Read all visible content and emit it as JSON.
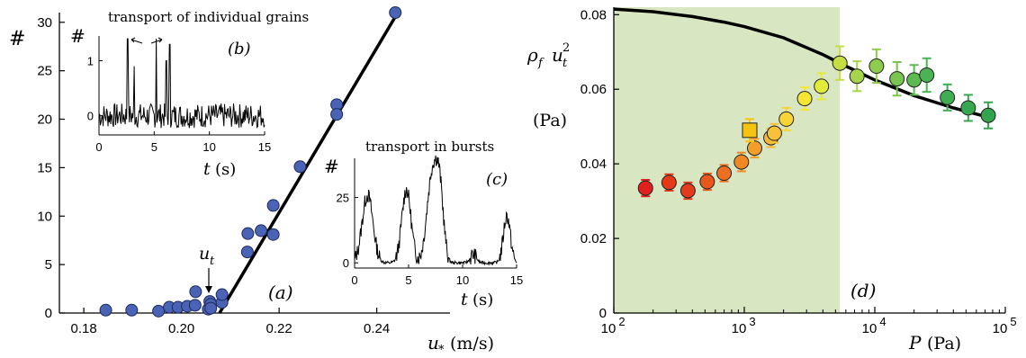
{
  "chart_data": [
    {
      "type": "scatter",
      "panel": "(a)",
      "xlabel_var": "u",
      "xlabel_sub": "*",
      "xlabel_unit": "(m/s)",
      "ylabel": "#",
      "xlim": [
        0.175,
        0.255
      ],
      "ylim": [
        0,
        31
      ],
      "xticks": [
        {
          "v": 0.18,
          "label": "0.18"
        },
        {
          "v": 0.2,
          "label": "0.20"
        },
        {
          "v": 0.22,
          "label": "0.22"
        },
        {
          "v": 0.24,
          "label": "0.24"
        }
      ],
      "yticks": [
        {
          "v": 0,
          "label": "0"
        },
        {
          "v": 5,
          "label": "5"
        },
        {
          "v": 10,
          "label": "10"
        },
        {
          "v": 15,
          "label": "15"
        },
        {
          "v": 20,
          "label": "20"
        },
        {
          "v": 25,
          "label": "25"
        },
        {
          "v": 30,
          "label": "30"
        }
      ],
      "marker_color": "#4a63b5",
      "points": [
        [
          0.1845,
          0.3
        ],
        [
          0.1898,
          0.3
        ],
        [
          0.1953,
          0.2
        ],
        [
          0.1975,
          0.6
        ],
        [
          0.1993,
          0.6
        ],
        [
          0.2012,
          0.7
        ],
        [
          0.2028,
          0.8
        ],
        [
          0.2029,
          2.2
        ],
        [
          0.2055,
          0.4
        ],
        [
          0.2058,
          1.2
        ],
        [
          0.206,
          0.9
        ],
        [
          0.206,
          0.5
        ],
        [
          0.2083,
          1.1
        ],
        [
          0.2083,
          1.9
        ],
        [
          0.2135,
          6.3
        ],
        [
          0.2136,
          8.2
        ],
        [
          0.2163,
          8.5
        ],
        [
          0.2188,
          8.1
        ],
        [
          0.2188,
          11.1
        ],
        [
          0.2243,
          15.1
        ],
        [
          0.2318,
          21.5
        ],
        [
          0.2318,
          20.5
        ],
        [
          0.2438,
          31.0
        ]
      ],
      "fit_line": [
        [
          0.2078,
          0
        ],
        [
          0.2443,
          31
        ]
      ],
      "annotation_text": "u",
      "annotation_sub": "t",
      "annotation_x": 0.2062,
      "inset_b": {
        "panel": "(b)",
        "title": "transport of individual grains",
        "ylabel": "#",
        "xlabel_var": "t",
        "xlabel_unit": "(s)",
        "xlim": [
          0,
          15
        ],
        "ylim": [
          -0.35,
          1.45
        ],
        "xticks": [
          {
            "v": 0,
            "label": "0"
          },
          {
            "v": 5,
            "label": "5"
          },
          {
            "v": 10,
            "label": "10"
          },
          {
            "v": 15,
            "label": "15"
          }
        ],
        "yticks": [
          {
            "v": 0,
            "label": "0"
          },
          {
            "v": 1,
            "label": "1"
          }
        ],
        "spikes": [
          [
            2.6,
            1.4
          ],
          [
            3.2,
            0.9
          ],
          [
            5.2,
            1.4
          ],
          [
            6.1,
            1.0
          ],
          [
            6.4,
            1.3
          ]
        ]
      },
      "inset_c": {
        "panel": "(c)",
        "title": "transport in bursts",
        "ylabel": "#",
        "xlabel_var": "t",
        "xlabel_unit": "(s)",
        "xlim": [
          0,
          15
        ],
        "ylim": [
          -2,
          40
        ],
        "xticks": [
          {
            "v": 0,
            "label": "0"
          },
          {
            "v": 5,
            "label": "5"
          },
          {
            "v": 10,
            "label": "10"
          },
          {
            "v": 15,
            "label": "15"
          }
        ],
        "yticks": [
          {
            "v": 0,
            "label": "0"
          },
          {
            "v": 25,
            "label": "25"
          }
        ],
        "bursts": [
          [
            1.2,
            26,
            0.7
          ],
          [
            4.8,
            28,
            0.6
          ],
          [
            7.2,
            34,
            0.7
          ],
          [
            7.9,
            22,
            0.5
          ],
          [
            11.0,
            3,
            0.4
          ],
          [
            14.1,
            18,
            0.45
          ]
        ]
      }
    },
    {
      "type": "scatter",
      "panel": "(d)",
      "xscale": "log",
      "xlabel_var": "P",
      "xlabel_unit": "(Pa)",
      "ylabel_top": "ρ_f u_t^2",
      "ylabel_unit": "(Pa)",
      "xlim": [
        100,
        100000
      ],
      "ylim": [
        0,
        0.082
      ],
      "xticks": [
        {
          "v": 100,
          "label": "10",
          "exp": "2"
        },
        {
          "v": 1000,
          "label": "10",
          "exp": "3"
        },
        {
          "v": 10000,
          "label": "10",
          "exp": "4"
        },
        {
          "v": 100000,
          "label": "10",
          "exp": "5"
        }
      ],
      "yticks": [
        {
          "v": 0,
          "label": "0"
        },
        {
          "v": 0.02,
          "label": "0.02"
        },
        {
          "v": 0.04,
          "label": "0.04"
        },
        {
          "v": 0.06,
          "label": "0.06"
        },
        {
          "v": 0.08,
          "label": "0.08"
        }
      ],
      "shade_range": [
        100,
        5400
      ],
      "shade_color": "#d8e6c2",
      "curve": [
        [
          100,
          0.0815
        ],
        [
          200,
          0.0808
        ],
        [
          400,
          0.0795
        ],
        [
          700,
          0.078
        ],
        [
          1000,
          0.0768
        ],
        [
          2000,
          0.0738
        ],
        [
          4000,
          0.0693
        ],
        [
          6000,
          0.0662
        ],
        [
          10000,
          0.0625
        ],
        [
          20000,
          0.0583
        ],
        [
          40000,
          0.055
        ],
        [
          80000,
          0.0522
        ]
      ],
      "points": [
        {
          "x": 175,
          "y": 0.0335,
          "err": 0.0022,
          "color": "#e02020"
        },
        {
          "x": 265,
          "y": 0.035,
          "err": 0.0022,
          "color": "#e43a1a"
        },
        {
          "x": 370,
          "y": 0.0328,
          "err": 0.0022,
          "color": "#e23c1c"
        },
        {
          "x": 520,
          "y": 0.0352,
          "err": 0.0022,
          "color": "#e8581c"
        },
        {
          "x": 700,
          "y": 0.0375,
          "err": 0.0022,
          "color": "#ec7020"
        },
        {
          "x": 950,
          "y": 0.0405,
          "err": 0.0025,
          "color": "#ef8a22"
        },
        {
          "x": 1200,
          "y": 0.0442,
          "err": 0.0025,
          "color": "#f29e28"
        },
        {
          "x": 1600,
          "y": 0.047,
          "err": 0.0025,
          "color": "#f6b832"
        },
        {
          "x": 1700,
          "y": 0.0482,
          "err": 0.0025,
          "color": "#f7c23a"
        },
        {
          "x": 2100,
          "y": 0.052,
          "err": 0.003,
          "color": "#f8d434"
        },
        {
          "x": 2900,
          "y": 0.0575,
          "err": 0.003,
          "color": "#f4e632"
        },
        {
          "x": 3900,
          "y": 0.0608,
          "err": 0.0035,
          "color": "#e2eb38"
        },
        {
          "x": 5400,
          "y": 0.067,
          "err": 0.0045,
          "color": "#c6de44"
        },
        {
          "x": 7300,
          "y": 0.0635,
          "err": 0.004,
          "color": "#a6d44a"
        },
        {
          "x": 10300,
          "y": 0.0662,
          "err": 0.0045,
          "color": "#8fcb4e"
        },
        {
          "x": 14800,
          "y": 0.0628,
          "err": 0.0045,
          "color": "#7ac450"
        },
        {
          "x": 20000,
          "y": 0.0625,
          "err": 0.004,
          "color": "#5cba50"
        },
        {
          "x": 25000,
          "y": 0.0638,
          "err": 0.0045,
          "color": "#4ab454"
        },
        {
          "x": 36000,
          "y": 0.0578,
          "err": 0.0035,
          "color": "#3fae52"
        },
        {
          "x": 52000,
          "y": 0.055,
          "err": 0.0035,
          "color": "#38a850"
        },
        {
          "x": 74000,
          "y": 0.053,
          "err": 0.0035,
          "color": "#33a44e"
        }
      ],
      "square_point": {
        "x": 1100,
        "y": 0.049,
        "err": 0.003,
        "color": "#f6c410"
      }
    }
  ]
}
